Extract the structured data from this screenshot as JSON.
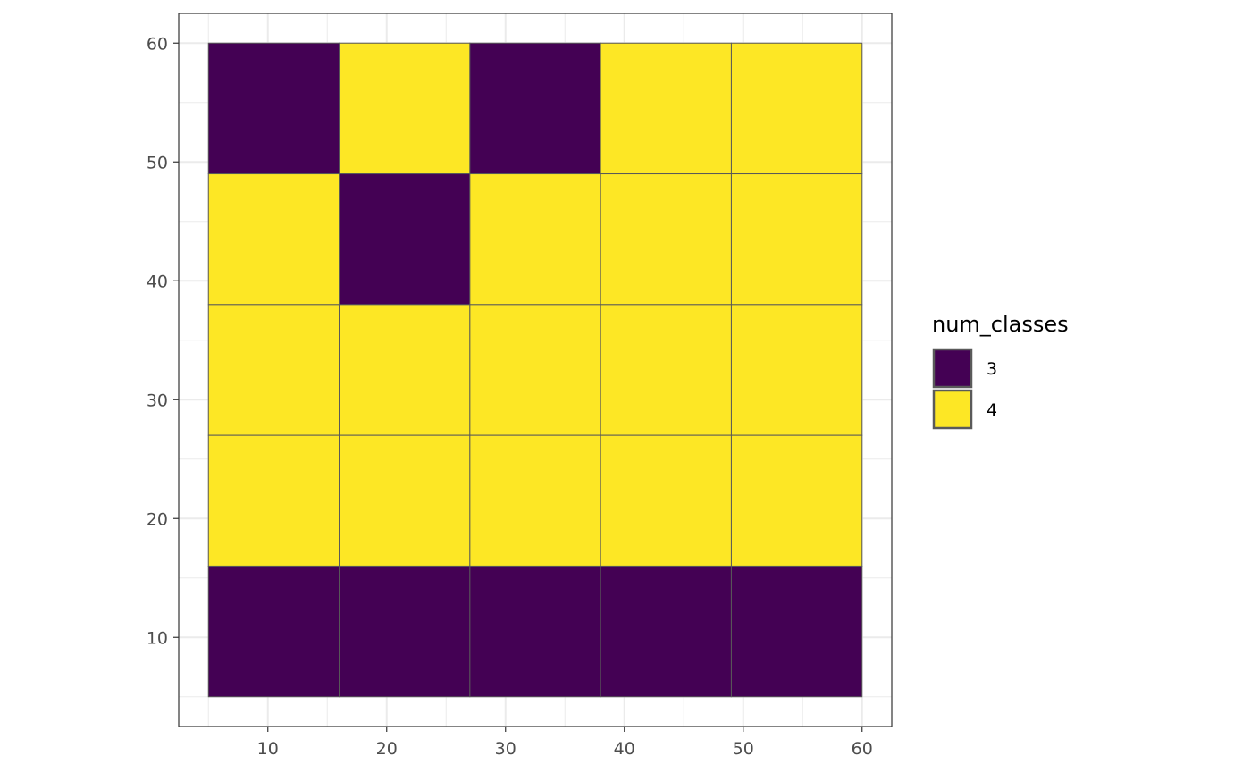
{
  "chart_data": {
    "type": "heatmap",
    "title": "",
    "xlabel": "",
    "ylabel": "",
    "xlim": [
      2.5,
      62.5
    ],
    "ylim": [
      2.5,
      62.5
    ],
    "x_ticks": [
      "10",
      "20",
      "30",
      "40",
      "50",
      "60"
    ],
    "y_ticks": [
      "10",
      "20",
      "30",
      "40",
      "50",
      "60"
    ],
    "grid": true,
    "legend_position": "right",
    "legend": {
      "title": "num_classes",
      "entries": [
        {
          "label": "3",
          "color": "#440154"
        },
        {
          "label": "4",
          "color": "#FDE725"
        }
      ]
    },
    "x_edges": [
      5,
      16,
      27,
      38,
      49,
      60
    ],
    "y_edges": [
      5,
      16,
      27,
      38,
      49,
      60
    ],
    "rows_top_to_bottom": [
      [
        "3",
        "4",
        "3",
        "4",
        "4"
      ],
      [
        "4",
        "3",
        "4",
        "4",
        "4"
      ],
      [
        "4",
        "4",
        "4",
        "4",
        "4"
      ],
      [
        "4",
        "4",
        "4",
        "4",
        "4"
      ],
      [
        "3",
        "3",
        "3",
        "3",
        "3"
      ]
    ],
    "colors": {
      "panel_border": "#333333",
      "grid_line": "#ebebeb",
      "cell_outline": "#595959"
    }
  }
}
